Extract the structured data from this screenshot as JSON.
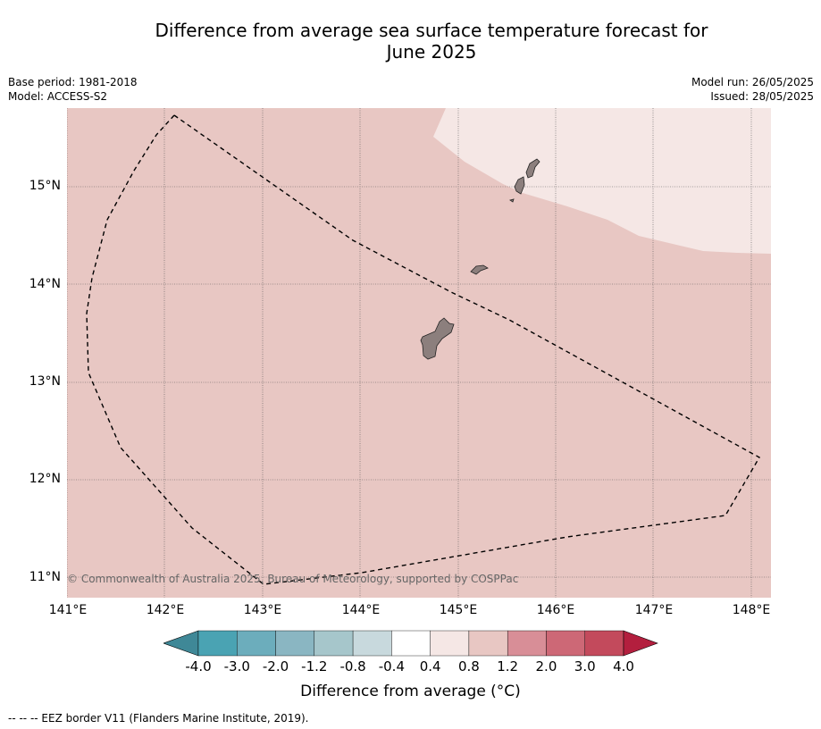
{
  "title_line1": "Difference from average sea surface temperature forecast for",
  "title_line2": "June 2025",
  "base_period": "Base period: 1981-2018",
  "model": "Model: ACCESS-S2",
  "model_run": "Model run: 26/05/2025",
  "issued": "Issued: 28/05/2025",
  "copyright": "© Commonwealth of Australia 2025, Bureau of Meteorology, supported by COSPPac",
  "lat_labels": [
    "15°N",
    "14°N",
    "13°N",
    "12°N",
    "11°N"
  ],
  "lon_labels": [
    "141°E",
    "142°E",
    "143°E",
    "144°E",
    "145°E",
    "146°E",
    "147°E",
    "148°E"
  ],
  "colorbar": {
    "ticks": [
      "-4.0",
      "-3.0",
      "-2.0",
      "-1.2",
      "-0.8",
      "-0.4",
      "0.4",
      "0.8",
      "1.2",
      "2.0",
      "3.0",
      "4.0"
    ],
    "colors": [
      "#3f8897",
      "#4aa3b3",
      "#6cadbc",
      "#8ab6c2",
      "#a6c6cb",
      "#c8d9dd",
      "#ffffff",
      "#f5e7e5",
      "#e8c7c3",
      "#d88e97",
      "#cd6876",
      "#c34a5c",
      "#b31f3e"
    ],
    "label": "Difference from average ($^\\circ$C)",
    "label_text": "Difference from average (°C)"
  },
  "map_colors": {
    "sea_main": "#e8c7c3",
    "sea_light": "#f5e7e5",
    "land": "#8c7f7d"
  },
  "footnote": "--  --  -- EEZ border V11 (Flanders Marine Institute, 2019)."
}
